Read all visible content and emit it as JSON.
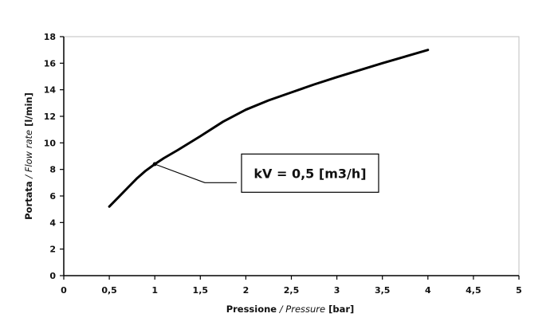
{
  "chart_data": {
    "type": "line",
    "title": "",
    "xlabel": {
      "main": "Pressione",
      "sep": " / ",
      "alt": "Pressure",
      "unit": " [bar]"
    },
    "ylabel": {
      "main": "Portata",
      "sep": " / ",
      "alt": "Flow rate",
      "unit": " [l/min]"
    },
    "xlim": [
      0,
      5
    ],
    "ylim": [
      0,
      18
    ],
    "xticks": [
      0,
      0.5,
      1,
      1.5,
      2,
      2.5,
      3,
      3.5,
      4,
      4.5,
      5
    ],
    "xtick_labels": [
      "0",
      "0,5",
      "1",
      "1,5",
      "2",
      "2,5",
      "3",
      "3,5",
      "4",
      "4,5",
      "5"
    ],
    "yticks": [
      0,
      2,
      4,
      6,
      8,
      10,
      12,
      14,
      16,
      18
    ],
    "ytick_labels": [
      "0",
      "2",
      "4",
      "6",
      "8",
      "10",
      "12",
      "14",
      "16",
      "18"
    ],
    "grid": false,
    "series": [
      {
        "x": [
          0.5,
          0.6,
          0.7,
          0.8,
          0.9,
          1.0,
          1.1,
          1.25,
          1.5,
          1.75,
          2.0,
          2.25,
          2.5,
          2.75,
          3.0,
          3.5,
          4.0
        ],
        "y": [
          5.2,
          5.9,
          6.6,
          7.3,
          7.9,
          8.4,
          8.85,
          9.45,
          10.5,
          11.6,
          12.5,
          13.2,
          13.8,
          14.4,
          14.95,
          16.0,
          17.0
        ]
      }
    ],
    "annotation": {
      "text": "kV = 0,5 [m3/h]",
      "point": {
        "x": 1.0,
        "y": 8.4
      },
      "elbow": {
        "x": 1.55,
        "y": 7.0
      },
      "end": {
        "x": 1.9,
        "y": 7.0
      }
    },
    "colors": {
      "line": "#000000",
      "axis": "#000000"
    }
  }
}
